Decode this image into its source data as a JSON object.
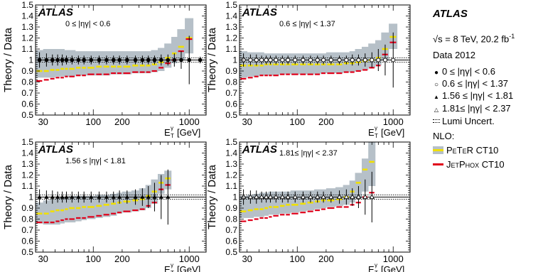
{
  "legend": {
    "experiment": "ATLAS",
    "energy_lumi": "√s = 8 TeV, 20.2 fb",
    "energy_lumi_sup": "-1",
    "dataset": "Data 2012",
    "bins": [
      {
        "symbol": "●",
        "label": "0 ≤ |ηγ| < 0.6"
      },
      {
        "symbol": "○",
        "label": "0.6 ≤ |ηγ| < 1.37"
      },
      {
        "symbol": "▲",
        "label": "1.56 ≤ |ηγ| < 1.81"
      },
      {
        "symbol": "△",
        "label": "1.81≤ |ηγ| < 2.37"
      }
    ],
    "lumi": "Lumi Uncert.",
    "nlo": "NLO:",
    "peter": "PeTeR CT10",
    "jetphox": "JetPhox CT10"
  },
  "colors": {
    "band": "#b6c0c8",
    "peter": "#f0e000",
    "jetphox": "#e0001a"
  },
  "chart_data": [
    {
      "type": "line",
      "atlas": "ATLAS",
      "label": "0 ≤ |ηγ| < 0.6",
      "ylabel": "Theory / Data",
      "xlabel": "E",
      "xlabel_sup": "γ",
      "xlabel_sub": "T",
      "xlabel_unit": "[GeV]",
      "xscale": "log",
      "xlim": [
        25,
        1500
      ],
      "ylim": [
        0.5,
        1.5
      ],
      "yticks": [
        "0.5",
        "0.6",
        "0.7",
        "0.8",
        "0.9",
        "1",
        "1.1",
        "1.2",
        "1.3",
        "1.4",
        "1.5"
      ],
      "xticks": [
        "30",
        "100",
        "200",
        "1000"
      ],
      "lumi_band": [
        0.981,
        1.019
      ],
      "bin_edges": [
        25,
        30,
        35,
        40,
        45,
        50,
        55,
        65,
        75,
        85,
        105,
        125,
        150,
        175,
        200,
        250,
        300,
        350,
        400,
        470,
        550,
        650,
        750,
        900,
        1100,
        1500
      ],
      "jetphox": [
        0.81,
        0.82,
        0.83,
        0.84,
        0.84,
        0.85,
        0.85,
        0.86,
        0.86,
        0.87,
        0.87,
        0.87,
        0.88,
        0.88,
        0.88,
        0.89,
        0.89,
        0.89,
        0.9,
        0.93,
        0.97,
        1.0,
        1.08,
        1.19,
        null
      ],
      "peter": [
        0.9,
        0.9,
        0.91,
        0.91,
        0.92,
        0.92,
        0.92,
        0.93,
        0.93,
        0.93,
        0.94,
        0.94,
        0.94,
        0.94,
        0.94,
        0.95,
        0.95,
        0.95,
        0.96,
        0.98,
        1.02,
        1.06,
        1.12,
        1.2,
        null
      ],
      "band_lo": [
        0.84,
        0.84,
        0.84,
        0.85,
        0.85,
        0.85,
        0.85,
        0.86,
        0.86,
        0.86,
        0.86,
        0.86,
        0.87,
        0.87,
        0.87,
        0.88,
        0.88,
        0.88,
        0.89,
        0.9,
        0.93,
        0.97,
        1.0,
        1.06,
        null
      ],
      "band_hi": [
        1.09,
        1.1,
        1.1,
        1.1,
        1.1,
        1.09,
        1.09,
        1.08,
        1.08,
        1.08,
        1.08,
        1.08,
        1.08,
        1.08,
        1.08,
        1.08,
        1.08,
        1.08,
        1.09,
        1.11,
        1.15,
        1.21,
        1.28,
        1.38,
        null
      ],
      "data_x": [
        27.5,
        32.5,
        37.5,
        42.5,
        47.5,
        52.5,
        60,
        70,
        80,
        95,
        115,
        137.5,
        162.5,
        187.5,
        225,
        275,
        325,
        375,
        435,
        510,
        600,
        700,
        825,
        1000,
        1300
      ],
      "data_err": [
        0.07,
        0.06,
        0.05,
        0.05,
        0.05,
        0.04,
        0.04,
        0.04,
        0.04,
        0.04,
        0.04,
        0.04,
        0.04,
        0.04,
        0.04,
        0.04,
        0.04,
        0.04,
        0.04,
        0.05,
        0.05,
        0.06,
        0.08,
        0.22,
        0.03
      ],
      "marker": "filled-circle"
    },
    {
      "type": "line",
      "atlas": "ATLAS",
      "label": "0.6 ≤ |ηγ| < 1.37",
      "ylabel": "Theory / Data",
      "xlabel": "E",
      "xlabel_sup": "γ",
      "xlabel_sub": "T",
      "xlabel_unit": "[GeV]",
      "xscale": "log",
      "xlim": [
        25,
        1500
      ],
      "ylim": [
        0.5,
        1.5
      ],
      "yticks": [
        "0.5",
        "0.6",
        "0.7",
        "0.8",
        "0.9",
        "1",
        "1.1",
        "1.2",
        "1.3",
        "1.4",
        "1.5"
      ],
      "xticks": [
        "30",
        "100",
        "200",
        "1000"
      ],
      "lumi_band": [
        0.981,
        1.019
      ],
      "bin_edges": [
        25,
        30,
        35,
        40,
        45,
        50,
        55,
        65,
        75,
        85,
        105,
        125,
        150,
        175,
        200,
        250,
        300,
        350,
        400,
        470,
        550,
        650,
        750,
        900,
        1100,
        1500
      ],
      "jetphox": [
        0.83,
        0.84,
        0.85,
        0.86,
        0.86,
        0.86,
        0.86,
        0.87,
        0.87,
        0.87,
        0.87,
        0.87,
        0.87,
        0.88,
        0.88,
        0.88,
        0.89,
        0.89,
        0.9,
        0.91,
        0.93,
        0.95,
        1.05,
        1.16,
        null
      ],
      "peter": [
        0.95,
        0.95,
        0.95,
        0.95,
        0.96,
        0.96,
        0.96,
        0.96,
        0.96,
        0.96,
        0.96,
        0.96,
        0.96,
        0.96,
        0.96,
        0.96,
        0.97,
        0.97,
        0.98,
        0.99,
        1.0,
        1.02,
        1.1,
        1.21,
        null
      ],
      "band_lo": [
        0.84,
        0.85,
        0.85,
        0.86,
        0.86,
        0.86,
        0.86,
        0.87,
        0.87,
        0.87,
        0.87,
        0.87,
        0.87,
        0.88,
        0.88,
        0.88,
        0.89,
        0.89,
        0.9,
        0.91,
        0.93,
        0.95,
        1.0,
        1.1,
        null
      ],
      "band_hi": [
        1.08,
        1.07,
        1.07,
        1.07,
        1.06,
        1.06,
        1.06,
        1.06,
        1.06,
        1.06,
        1.06,
        1.06,
        1.06,
        1.06,
        1.07,
        1.07,
        1.07,
        1.08,
        1.1,
        1.12,
        1.15,
        1.18,
        1.25,
        1.33,
        null
      ],
      "data_x": [
        27.5,
        32.5,
        37.5,
        42.5,
        47.5,
        52.5,
        60,
        70,
        80,
        95,
        115,
        137.5,
        162.5,
        187.5,
        225,
        275,
        325,
        375,
        435,
        510,
        600,
        700,
        825,
        1000
      ],
      "data_err": [
        0.06,
        0.05,
        0.05,
        0.04,
        0.04,
        0.04,
        0.04,
        0.04,
        0.04,
        0.04,
        0.04,
        0.04,
        0.04,
        0.04,
        0.04,
        0.04,
        0.04,
        0.05,
        0.05,
        0.06,
        0.07,
        0.1,
        0.14,
        0.25
      ],
      "marker": "open-circle"
    },
    {
      "type": "line",
      "atlas": "ATLAS",
      "label": "1.56 ≤ |ηγ| < 1.81",
      "ylabel": "Theory / Data",
      "xlabel": "E",
      "xlabel_sup": "γ",
      "xlabel_sub": "T",
      "xlabel_unit": "[GeV]",
      "xscale": "log",
      "xlim": [
        25,
        1500
      ],
      "ylim": [
        0.5,
        1.5
      ],
      "yticks": [
        "0.5",
        "0.6",
        "0.7",
        "0.8",
        "0.9",
        "1",
        "1.1",
        "1.2",
        "1.3",
        "1.4",
        "1.5"
      ],
      "xticks": [
        "30",
        "100",
        "200",
        "1000"
      ],
      "lumi_band": [
        0.981,
        1.019
      ],
      "bin_edges": [
        25,
        30,
        35,
        40,
        45,
        50,
        55,
        65,
        75,
        85,
        105,
        125,
        150,
        175,
        200,
        250,
        300,
        350,
        400,
        470,
        550,
        650
      ],
      "jetphox": [
        0.77,
        0.77,
        0.77,
        0.78,
        0.79,
        0.8,
        0.8,
        0.81,
        0.81,
        0.82,
        0.83,
        0.84,
        0.85,
        0.86,
        0.87,
        0.88,
        0.89,
        0.92,
        0.95,
        1.07,
        1.11
      ],
      "peter": [
        0.85,
        0.85,
        0.87,
        0.88,
        0.88,
        0.89,
        0.9,
        0.9,
        0.91,
        0.91,
        0.92,
        0.93,
        0.94,
        0.95,
        0.96,
        0.97,
        0.98,
        1.01,
        1.05,
        1.13,
        1.17
      ],
      "band_lo": [
        0.76,
        0.75,
        0.75,
        0.75,
        0.76,
        0.77,
        0.77,
        0.78,
        0.79,
        0.8,
        0.81,
        0.82,
        0.83,
        0.85,
        0.86,
        0.87,
        0.88,
        0.9,
        0.94,
        1.03,
        1.07
      ],
      "band_hi": [
        0.95,
        0.97,
        0.98,
        0.99,
        1.0,
        1.0,
        1.01,
        1.01,
        1.01,
        1.01,
        1.02,
        1.02,
        1.03,
        1.04,
        1.05,
        1.06,
        1.08,
        1.11,
        1.16,
        1.21,
        1.24
      ],
      "data_x": [
        27.5,
        32.5,
        37.5,
        42.5,
        47.5,
        52.5,
        60,
        70,
        80,
        95,
        115,
        137.5,
        162.5,
        187.5,
        225,
        275,
        325,
        375,
        435,
        510,
        600
      ],
      "data_err": [
        0.07,
        0.06,
        0.06,
        0.05,
        0.05,
        0.05,
        0.05,
        0.05,
        0.05,
        0.05,
        0.05,
        0.05,
        0.05,
        0.06,
        0.06,
        0.07,
        0.08,
        0.1,
        0.13,
        0.2,
        0.25
      ],
      "marker": "filled-triangle"
    },
    {
      "type": "line",
      "atlas": "ATLAS",
      "label": "1.81≤ |ηγ| < 2.37",
      "ylabel": "Theory / Data",
      "xlabel": "E",
      "xlabel_sup": "γ",
      "xlabel_sub": "T",
      "xlabel_unit": "[GeV]",
      "xscale": "log",
      "xlim": [
        25,
        1500
      ],
      "ylim": [
        0.5,
        1.5
      ],
      "yticks": [
        "0.5",
        "0.6",
        "0.7",
        "0.8",
        "0.9",
        "1",
        "1.1",
        "1.2",
        "1.3",
        "1.4",
        "1.5"
      ],
      "xticks": [
        "30",
        "100",
        "200",
        "1000"
      ],
      "lumi_band": [
        0.981,
        1.019
      ],
      "bin_edges": [
        25,
        30,
        35,
        40,
        45,
        50,
        55,
        65,
        75,
        85,
        105,
        125,
        150,
        175,
        200,
        250,
        300,
        350,
        400,
        470,
        550,
        650
      ],
      "jetphox": [
        0.78,
        0.79,
        0.8,
        0.81,
        0.81,
        0.82,
        0.83,
        0.84,
        0.84,
        0.85,
        0.86,
        0.87,
        0.88,
        0.89,
        0.9,
        0.91,
        0.91,
        0.93,
        0.95,
        1.0,
        1.04
      ],
      "peter": [
        0.87,
        0.88,
        0.89,
        0.89,
        0.9,
        0.91,
        0.91,
        0.92,
        0.93,
        0.93,
        0.94,
        0.95,
        0.96,
        0.97,
        0.97,
        0.98,
        1.0,
        1.05,
        1.13,
        1.25,
        1.32
      ],
      "band_lo": [
        0.81,
        0.81,
        0.82,
        0.82,
        0.83,
        0.84,
        0.84,
        0.85,
        0.85,
        0.86,
        0.87,
        0.88,
        0.89,
        0.9,
        0.91,
        0.92,
        0.93,
        0.95,
        0.99,
        1.05,
        1.1
      ],
      "band_hi": [
        1.01,
        1.02,
        1.03,
        1.04,
        1.04,
        1.05,
        1.05,
        1.05,
        1.05,
        1.06,
        1.06,
        1.06,
        1.07,
        1.07,
        1.08,
        1.09,
        1.11,
        1.15,
        1.22,
        1.35,
        1.5
      ],
      "data_x": [
        27.5,
        32.5,
        37.5,
        42.5,
        47.5,
        52.5,
        60,
        70,
        80,
        95,
        115,
        137.5,
        162.5,
        187.5,
        225,
        275,
        325,
        375,
        435,
        510,
        600
      ],
      "data_err": [
        0.07,
        0.06,
        0.06,
        0.05,
        0.05,
        0.05,
        0.05,
        0.05,
        0.05,
        0.05,
        0.05,
        0.05,
        0.05,
        0.05,
        0.05,
        0.06,
        0.07,
        0.08,
        0.1,
        0.16,
        0.23
      ],
      "marker": "open-triangle"
    }
  ]
}
